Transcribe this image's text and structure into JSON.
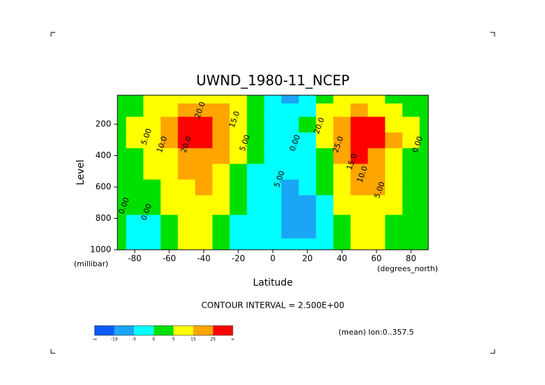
{
  "chart_data": {
    "type": "contour",
    "title": "UWND_1980-11_NCEP",
    "x_label": "Latitude",
    "x_units": "(degrees_north)",
    "y_label": "Level",
    "y_units": "(millibar)",
    "note": "CONTOUR INTERVAL = 2.500E+00",
    "footer": "(mean) lon:0..357.5",
    "x": [
      -90,
      -80,
      -70,
      -60,
      -50,
      -40,
      -30,
      -20,
      -10,
      0,
      10,
      20,
      30,
      40,
      50,
      60,
      70,
      80,
      90
    ],
    "y": [
      1000,
      850,
      700,
      600,
      500,
      400,
      300,
      200,
      100,
      30
    ],
    "z": [
      [
        0,
        -2,
        -3,
        2,
        6,
        5,
        2,
        -3,
        -4,
        -4,
        -5,
        -4,
        -2,
        3,
        7,
        6,
        2,
        0,
        0
      ],
      [
        0,
        -1,
        -2,
        4,
        9,
        9,
        4,
        -2,
        -4,
        -5,
        -7,
        -6,
        -2,
        4,
        10,
        9,
        3,
        0,
        0
      ],
      [
        1,
        0,
        1,
        6,
        12,
        12,
        6,
        0,
        -3,
        -5,
        -8,
        -6,
        -1,
        6,
        13,
        12,
        5,
        1,
        0
      ],
      [
        2,
        2,
        3,
        8,
        14,
        15,
        8,
        1,
        -2,
        -5,
        -7,
        -5,
        0,
        8,
        16,
        15,
        7,
        2,
        0
      ],
      [
        3,
        3,
        5,
        10,
        17,
        18,
        11,
        3,
        -1,
        -4,
        -5,
        -4,
        2,
        11,
        20,
        19,
        10,
        3,
        1
      ],
      [
        3,
        4,
        7,
        12,
        21,
        23,
        15,
        5,
        0,
        -3,
        -4,
        -2,
        4,
        15,
        26,
        24,
        13,
        4,
        1
      ],
      [
        3,
        5,
        9,
        16,
        26,
        29,
        20,
        8,
        1,
        -2,
        -3,
        -1,
        7,
        20,
        32,
        28,
        15,
        5,
        2
      ],
      [
        4,
        5,
        10,
        18,
        28,
        30,
        22,
        10,
        2,
        -1,
        -3,
        0,
        10,
        23,
        34,
        26,
        13,
        5,
        2
      ],
      [
        3,
        4,
        8,
        14,
        20,
        20,
        16,
        8,
        2,
        -3,
        -5,
        -2,
        6,
        14,
        18,
        14,
        8,
        4,
        2
      ],
      [
        2,
        3,
        5,
        8,
        10,
        10,
        9,
        5,
        1,
        -4,
        -6,
        -3,
        2,
        6,
        8,
        6,
        4,
        3,
        2
      ]
    ],
    "xlim": [
      -90,
      90
    ],
    "ylim": [
      1000,
      15
    ],
    "xticks": [
      -80,
      -60,
      -40,
      -20,
      0,
      20,
      40,
      60,
      80
    ],
    "yticks": [
      200,
      400,
      600,
      800,
      1000
    ],
    "contour_labels": [
      {
        "text": "20.0",
        "x": -42,
        "y": 110
      },
      {
        "text": "15.0",
        "x": -22,
        "y": 170
      },
      {
        "text": "5.00",
        "x": -73,
        "y": 280
      },
      {
        "text": "10.0",
        "x": -64,
        "y": 330
      },
      {
        "text": "20.0",
        "x": -50,
        "y": 330
      },
      {
        "text": "5.00",
        "x": -16,
        "y": 320
      },
      {
        "text": "0.00",
        "x": 13,
        "y": 320
      },
      {
        "text": "5.00",
        "x": 4,
        "y": 550
      },
      {
        "text": "0.00",
        "x": -86,
        "y": 720
      },
      {
        "text": "0.00",
        "x": -73,
        "y": 760
      },
      {
        "text": "20.0",
        "x": 27,
        "y": 210
      },
      {
        "text": "25.0",
        "x": 38,
        "y": 330
      },
      {
        "text": "15.0",
        "x": 46,
        "y": 440
      },
      {
        "text": "10.0",
        "x": 52,
        "y": 520
      },
      {
        "text": "5.00",
        "x": 62,
        "y": 620
      },
      {
        "text": "0.00",
        "x": 84,
        "y": 330
      }
    ],
    "colorbar": {
      "levels": [
        -10,
        -5,
        0,
        5,
        15,
        25
      ],
      "colors": [
        "#0a5cff",
        "#1aa5f5",
        "#00ffff",
        "#00e000",
        "#ffff00",
        "#ffa500",
        "#ff0000"
      ],
      "low_label": "-∞",
      "high_label": "∞"
    }
  }
}
